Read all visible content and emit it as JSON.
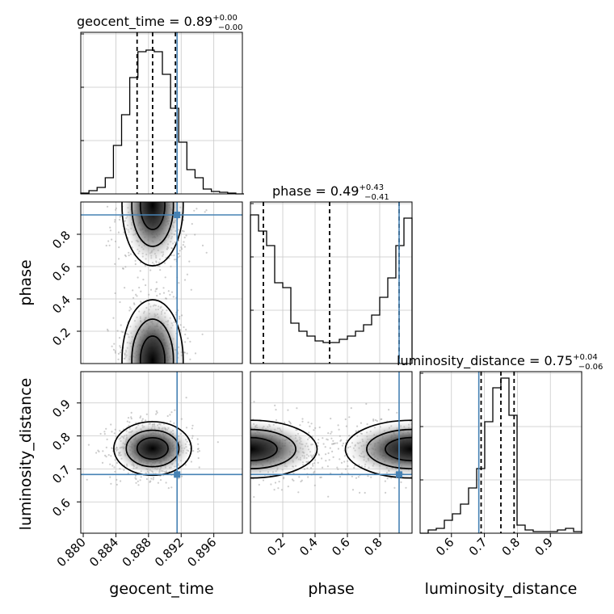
{
  "chart_data": {
    "type": "corner",
    "parameters": [
      "geocent_time",
      "phase",
      "luminosity_distance"
    ],
    "ranges": {
      "geocent_time": [
        0.8797,
        0.8995
      ],
      "phase": [
        0.0,
        1.0
      ],
      "luminosity_distance": [
        0.505,
        0.995
      ]
    },
    "grid": true,
    "injection_color": "#4682b4",
    "injection_values": {
      "geocent_time": 0.8915,
      "phase": 0.92,
      "luminosity_distance": 0.683
    },
    "titles": [
      {
        "param": "geocent_time",
        "text": "geocent_time = 0.89",
        "plus": "+0.00",
        "minus": "−0.00"
      },
      {
        "param": "phase",
        "text": "phase = 0.49",
        "plus": "+0.43",
        "minus": "−0.41"
      },
      {
        "param": "luminosity_distance",
        "text": "luminosity_distance = 0.75",
        "plus": "+0.04",
        "minus": "−0.06"
      }
    ],
    "axis_labels": {
      "x": [
        "geocent_time",
        "phase",
        "luminosity_distance"
      ],
      "y": [
        "phase",
        "luminosity_distance"
      ]
    },
    "ticks": {
      "geocent_time": {
        "values": [
          0.88,
          0.884,
          0.888,
          0.892,
          0.896
        ],
        "labels": [
          "0.880",
          "0.884",
          "0.888",
          "0.892",
          "0.896"
        ]
      },
      "phase": {
        "values": [
          0.2,
          0.4,
          0.6,
          0.8
        ],
        "labels": [
          "0.2",
          "0.4",
          "0.6",
          "0.8"
        ]
      },
      "luminosity_distance": {
        "values": [
          0.6,
          0.7,
          0.8,
          0.9
        ],
        "labels": [
          "0.6",
          "0.7",
          "0.8",
          "0.9"
        ]
      }
    },
    "histograms": [
      {
        "param": "geocent_time",
        "bin_edges": [
          0.8797,
          0.8807,
          0.8817,
          0.8827,
          0.8837,
          0.8847,
          0.8857,
          0.8867,
          0.8877,
          0.8887,
          0.8897,
          0.8907,
          0.8917,
          0.8927,
          0.8937,
          0.8947,
          0.8957,
          0.8967,
          0.8977,
          0.8987,
          0.8997
        ],
        "counts": [
          0.005,
          0.02,
          0.04,
          0.1,
          0.3,
          0.49,
          0.72,
          0.88,
          0.89,
          0.88,
          0.74,
          0.53,
          0.32,
          0.15,
          0.1,
          0.03,
          0.015,
          0.01,
          0.005,
          0.0
        ],
        "quantiles": [
          0.8866,
          0.8885,
          0.8913
        ]
      },
      {
        "param": "phase",
        "bin_edges": [
          0.0,
          0.05,
          0.1,
          0.15,
          0.2,
          0.25,
          0.3,
          0.35,
          0.4,
          0.45,
          0.5,
          0.55,
          0.6,
          0.65,
          0.7,
          0.75,
          0.8,
          0.85,
          0.9,
          0.95,
          1.0
        ],
        "counts": [
          0.92,
          0.82,
          0.73,
          0.5,
          0.47,
          0.25,
          0.2,
          0.17,
          0.14,
          0.13,
          0.13,
          0.15,
          0.17,
          0.2,
          0.24,
          0.3,
          0.41,
          0.53,
          0.73,
          0.9
        ],
        "quantiles": [
          0.08,
          0.49,
          0.92
        ]
      },
      {
        "param": "luminosity_distance",
        "bin_edges": [
          0.505,
          0.5295,
          0.554,
          0.5785,
          0.603,
          0.6275,
          0.652,
          0.6765,
          0.701,
          0.7255,
          0.75,
          0.7745,
          0.799,
          0.8235,
          0.848,
          0.8725,
          0.897,
          0.9215,
          0.946,
          0.9705,
          0.995
        ],
        "counts": [
          0.0,
          0.02,
          0.03,
          0.08,
          0.12,
          0.18,
          0.28,
          0.4,
          0.69,
          0.9,
          0.96,
          0.73,
          0.05,
          0.02,
          0.01,
          0.01,
          0.01,
          0.02,
          0.03,
          0.01
        ],
        "quantiles": [
          0.69,
          0.75,
          0.79
        ]
      }
    ],
    "density_2d": [
      {
        "x": "geocent_time",
        "y": "phase",
        "modes": [
          {
            "x": 0.8885,
            "y": 0.02
          },
          {
            "x": 0.8885,
            "y": 0.98
          }
        ],
        "contour_levels": [
          "1σ",
          "2σ",
          "3σ"
        ]
      },
      {
        "x": "geocent_time",
        "y": "luminosity_distance",
        "modes": [
          {
            "x": 0.8885,
            "y": 0.762
          }
        ],
        "contour_levels": [
          "1σ",
          "2σ",
          "3σ"
        ]
      },
      {
        "x": "phase",
        "y": "luminosity_distance",
        "modes": [
          {
            "x": 0.0,
            "y": 0.76
          },
          {
            "x": 1.0,
            "y": 0.76
          }
        ],
        "contour_levels": [
          "1σ",
          "2σ",
          "3σ"
        ]
      }
    ]
  }
}
